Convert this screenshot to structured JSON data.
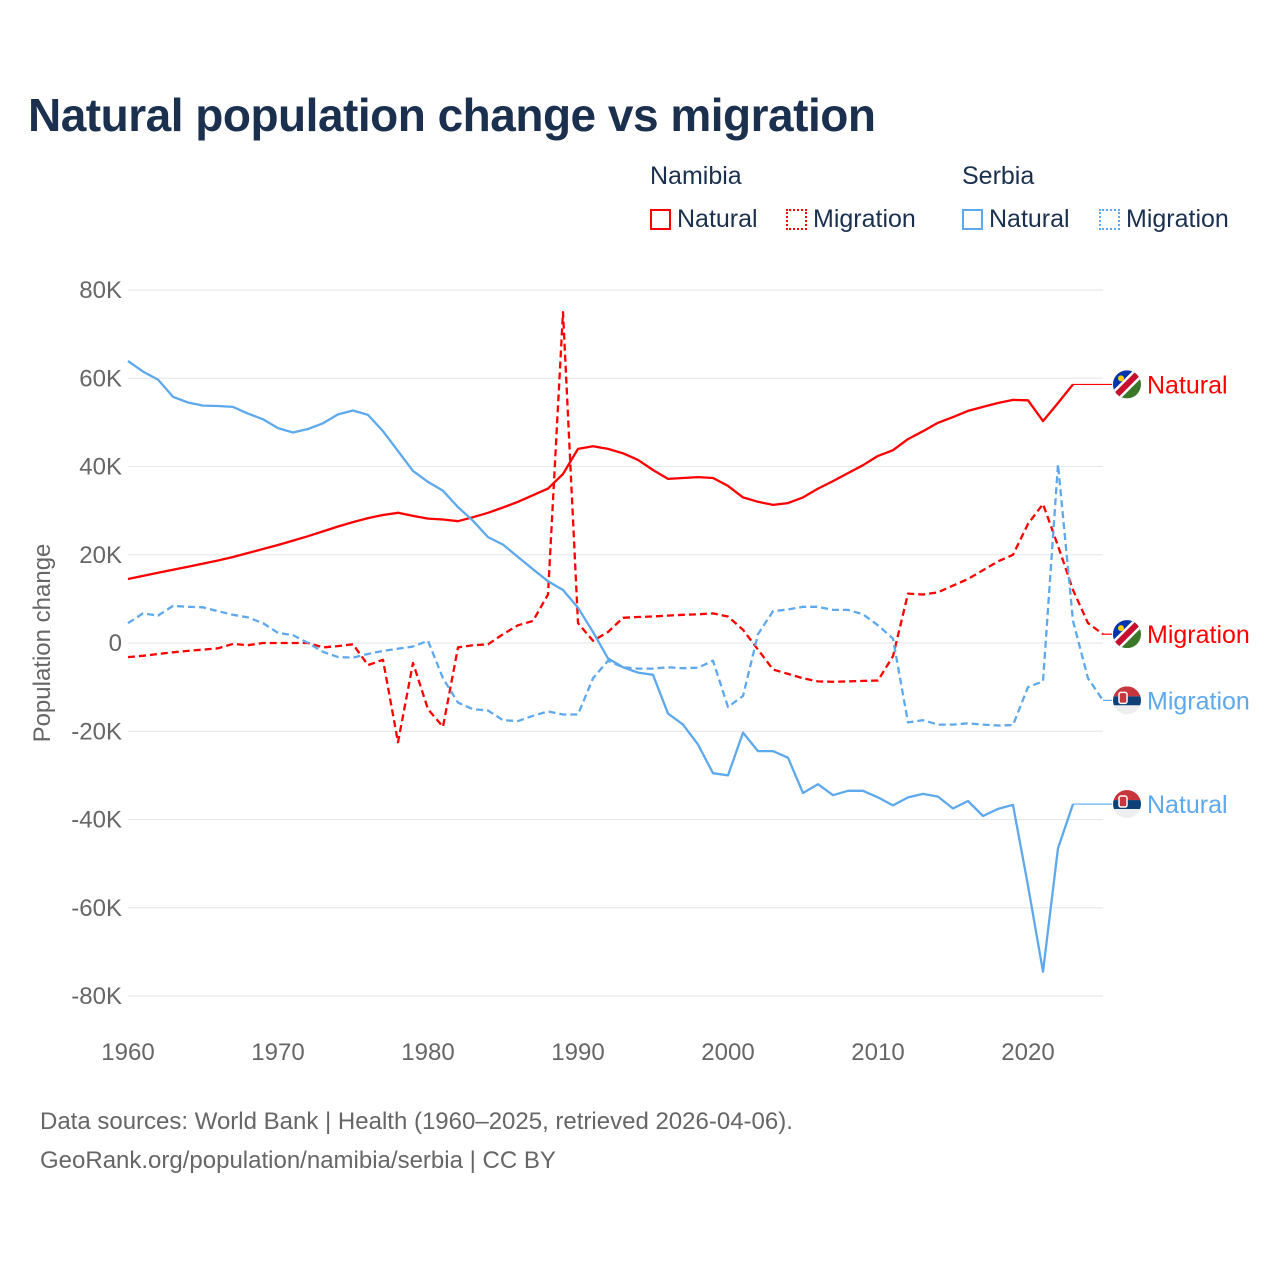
{
  "chart_data": {
    "type": "line",
    "title": "Natural population change vs migration",
    "xlabel": "",
    "ylabel": "Population change",
    "xlim": [
      1960,
      2025
    ],
    "ylim": [
      -80000,
      80000
    ],
    "grid": true,
    "x_ticks": [
      1960,
      1970,
      1980,
      1990,
      2000,
      2010,
      2020
    ],
    "x_tick_labels": [
      "1960",
      "1970",
      "1980",
      "1990",
      "2000",
      "2010",
      "2020"
    ],
    "y_ticks": [
      80000,
      60000,
      40000,
      20000,
      0,
      -20000,
      -40000,
      -60000,
      -80000
    ],
    "y_tick_labels": [
      "80K",
      "60K",
      "40K",
      "20K",
      "0",
      "-20K",
      "-40K",
      "-60K",
      "-80K"
    ],
    "legend": {
      "placement": "top-right",
      "groups": [
        {
          "country": "Namibia",
          "items": [
            "Natural",
            "Migration"
          ]
        },
        {
          "country": "Serbia",
          "items": [
            "Natural",
            "Migration"
          ]
        }
      ]
    },
    "series": [
      {
        "name": "Namibia Natural",
        "country": "Namibia",
        "label": "Natural",
        "color": "#ff0000",
        "style": "solid",
        "x_start": 1960,
        "values": [
          14500,
          15200,
          15900,
          16600,
          17300,
          18000,
          18700,
          19500,
          20400,
          21300,
          22200,
          23200,
          24200,
          25300,
          26400,
          27400,
          28300,
          29000,
          29500,
          28800,
          28200,
          28000,
          27600,
          28500,
          29500,
          30700,
          32000,
          33500,
          35000,
          38300,
          44000,
          44600,
          44000,
          43000,
          41500,
          39200,
          37200,
          37400,
          37600,
          37400,
          35600,
          33000,
          32000,
          31300,
          31700,
          33000,
          35000,
          36700,
          38500,
          40300,
          42400,
          43700,
          46200,
          48000,
          49900,
          51200,
          52600,
          53500,
          54400,
          55100,
          55000,
          50300,
          54400,
          58600
        ]
      },
      {
        "name": "Namibia Migration",
        "country": "Namibia",
        "label": "Migration",
        "color": "#ff0000",
        "style": "dashed",
        "x_start": 1960,
        "values": [
          -3200,
          -2900,
          -2500,
          -2100,
          -1800,
          -1500,
          -1200,
          -200,
          -500,
          0,
          0,
          0,
          0,
          -1000,
          -700,
          -300,
          -5000,
          -3800,
          -22500,
          -4500,
          -15000,
          -19000,
          -1000,
          -500,
          -300,
          2000,
          4000,
          5000,
          11000,
          75000,
          4500,
          500,
          2500,
          5700,
          5900,
          6000,
          6200,
          6400,
          6500,
          6700,
          6000,
          3000,
          -1500,
          -6000,
          -7000,
          -8000,
          -8700,
          -8800,
          -8700,
          -8600,
          -8500,
          -3000,
          11200,
          11000,
          11500,
          13000,
          14500,
          16500,
          18500,
          20000,
          27000,
          31500,
          22000,
          12000,
          4500,
          2000
        ]
      },
      {
        "name": "Serbia Natural",
        "country": "Serbia",
        "label": "Natural",
        "color": "#5ea8ec",
        "style": "solid",
        "x_start": 1960,
        "values": [
          63900,
          61500,
          59700,
          55800,
          54500,
          53800,
          53700,
          53500,
          52000,
          50700,
          48700,
          47700,
          48500,
          49800,
          51800,
          52700,
          51700,
          48000,
          43500,
          39000,
          36500,
          34500,
          30800,
          27700,
          24000,
          22300,
          19500,
          16700,
          14000,
          12000,
          8000,
          2500,
          -3500,
          -5500,
          -6700,
          -7200,
          -16000,
          -18500,
          -23000,
          -29500,
          -30000,
          -20300,
          -24500,
          -24500,
          -26000,
          -34000,
          -32000,
          -34500,
          -33500,
          -33500,
          -35000,
          -36800,
          -35000,
          -34200,
          -34800,
          -37500,
          -35800,
          -39200,
          -37600,
          -36700,
          -55000,
          -74500,
          -46500,
          -36500
        ]
      },
      {
        "name": "Serbia Migration",
        "country": "Serbia",
        "label": "Migration",
        "color": "#5ea8ec",
        "style": "dashed",
        "x_start": 1960,
        "values": [
          4500,
          6700,
          6200,
          8400,
          8200,
          8100,
          7200,
          6400,
          5800,
          4500,
          2300,
          1800,
          0,
          -2000,
          -3200,
          -3300,
          -2500,
          -1800,
          -1300,
          -800,
          500,
          -8000,
          -13500,
          -15000,
          -15300,
          -17500,
          -17700,
          -16500,
          -15500,
          -16200,
          -16200,
          -8000,
          -4000,
          -5500,
          -5800,
          -5800,
          -5500,
          -5700,
          -5600,
          -4000,
          -14500,
          -12000,
          2000,
          7200,
          7600,
          8200,
          8200,
          7500,
          7500,
          6500,
          4000,
          1000,
          -18000,
          -17500,
          -18500,
          -18500,
          -18200,
          -18500,
          -18700,
          -18600,
          -10000,
          -8700,
          40500,
          5000,
          -8000,
          -13000
        ]
      }
    ]
  },
  "footer": {
    "line1": "Data sources: World Bank | Health (1960–2025, retrieved 2026-04-06).",
    "line2": "GeoRank.org/population/namibia/serbia | CC BY"
  },
  "colors": {
    "namibia": "#ff0000",
    "serbia": "#5ea8ec",
    "title": "#1b2f4f"
  }
}
